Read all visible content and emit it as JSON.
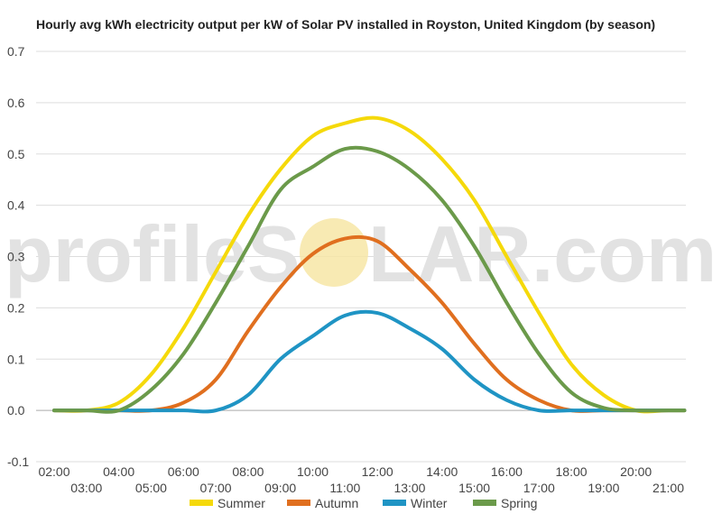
{
  "title": "Hourly avg kWh electricity output per kW of Solar PV installed in Royston, United Kingdom (by season)",
  "watermark": {
    "left": "profileS",
    "o": "O",
    "right": "LAR.com"
  },
  "colors": {
    "Summer": "#f5d90a",
    "Autumn": "#e06f1f",
    "Winter": "#1f94c4",
    "Spring": "#6b9a4a",
    "grid": "#dddddd",
    "watermark_text": "#e2e2e2",
    "watermark_sun": "#f7e6a6"
  },
  "chart_data": {
    "type": "line",
    "title": "Hourly avg kWh electricity output per kW of Solar PV installed in Royston, United Kingdom (by season)",
    "xlabel": "",
    "ylabel": "",
    "ylim": [
      -0.1,
      0.7
    ],
    "yticks": [
      "-0.1",
      "0.0",
      "0.1",
      "0.2",
      "0.3",
      "0.4",
      "0.5",
      "0.6",
      "0.7"
    ],
    "xlim": [
      2,
      21.5
    ],
    "xticks_upper": [
      "02:00",
      "04:00",
      "06:00",
      "08:00",
      "10:00",
      "12:00",
      "14:00",
      "16:00",
      "18:00",
      "20:00"
    ],
    "xticks_lower": [
      "03:00",
      "05:00",
      "07:00",
      "09:00",
      "11:00",
      "13:00",
      "15:00",
      "17:00",
      "19:00",
      "21:00"
    ],
    "x": [
      "02:00",
      "03:00",
      "04:00",
      "05:00",
      "06:00",
      "07:00",
      "08:00",
      "09:00",
      "10:00",
      "11:00",
      "12:00",
      "13:00",
      "14:00",
      "15:00",
      "16:00",
      "17:00",
      "18:00",
      "19:00",
      "20:00",
      "21:00",
      "21:30"
    ],
    "grid": true,
    "legend_position": "bottom",
    "series": [
      {
        "name": "Summer",
        "values": [
          0.0,
          0.0,
          0.015,
          0.07,
          0.16,
          0.27,
          0.38,
          0.47,
          0.535,
          0.56,
          0.57,
          0.545,
          0.49,
          0.41,
          0.3,
          0.19,
          0.09,
          0.03,
          0.0,
          0.0,
          0.0
        ]
      },
      {
        "name": "Autumn",
        "values": [
          0.0,
          0.0,
          0.0,
          0.0,
          0.015,
          0.06,
          0.155,
          0.24,
          0.305,
          0.335,
          0.33,
          0.275,
          0.21,
          0.13,
          0.06,
          0.02,
          0.0,
          0.0,
          0.0,
          0.0,
          0.0
        ]
      },
      {
        "name": "Winter",
        "values": [
          0.0,
          0.0,
          0.0,
          0.0,
          0.0,
          0.0,
          0.03,
          0.1,
          0.145,
          0.185,
          0.19,
          0.16,
          0.12,
          0.06,
          0.02,
          0.0,
          0.0,
          0.0,
          0.0,
          0.0,
          0.0
        ]
      },
      {
        "name": "Spring",
        "values": [
          0.0,
          0.0,
          0.0,
          0.04,
          0.11,
          0.21,
          0.32,
          0.43,
          0.475,
          0.51,
          0.505,
          0.47,
          0.41,
          0.32,
          0.21,
          0.11,
          0.035,
          0.005,
          0.0,
          0.0,
          0.0
        ]
      }
    ]
  }
}
